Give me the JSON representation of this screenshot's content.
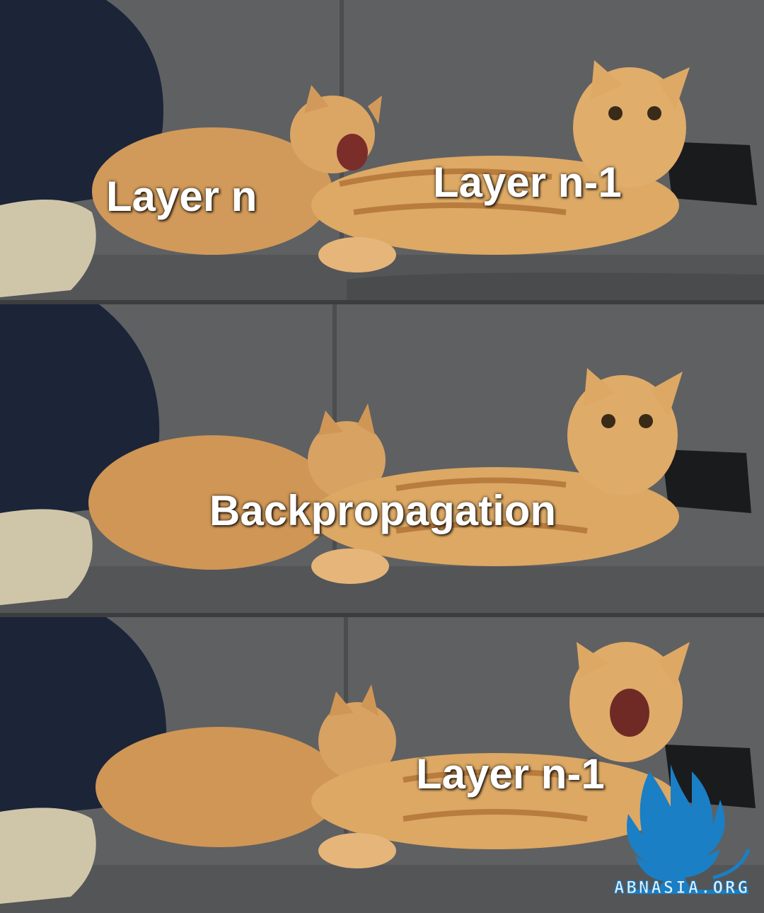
{
  "panels": [
    {
      "id": "top",
      "caption_left": "Layer n",
      "caption_right": "Layer n-1"
    },
    {
      "id": "middle",
      "caption_center": "Backpropagation"
    },
    {
      "id": "bottom",
      "caption_right": "Layer n-1"
    }
  ],
  "watermark": {
    "text": "ABNASIA.ORG",
    "icon": "griffin-logo-icon"
  },
  "colors": {
    "couch": "#5d5e60",
    "cat": "#d9a15b",
    "cat_dark": "#b87c3f",
    "pillow_navy": "#1c2438",
    "pillow_cream": "#cfc6aa",
    "logo_blue": "#1a7fc4"
  }
}
